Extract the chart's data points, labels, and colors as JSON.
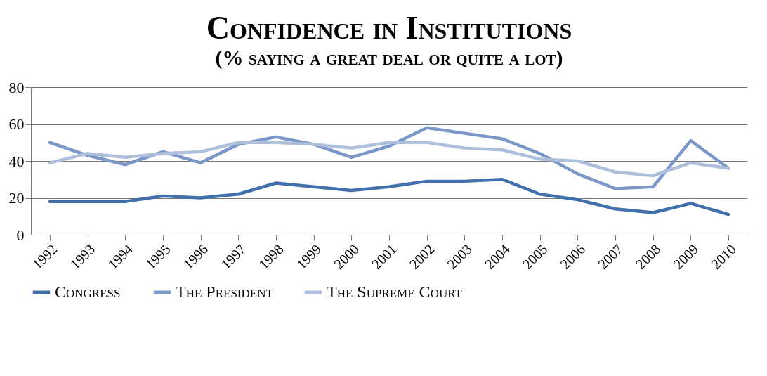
{
  "chart_data": {
    "type": "line",
    "title": "Confidence in Institutions",
    "subtitle": "(% saying a great deal or quite a lot)",
    "categories": [
      "1992",
      "1993",
      "1994",
      "1995",
      "1996",
      "1997",
      "1998",
      "1999",
      "2000",
      "2001",
      "2002",
      "2003",
      "2004",
      "2005",
      "2006",
      "2007",
      "2008",
      "2009",
      "2010"
    ],
    "series": [
      {
        "name": "Congress",
        "color": "#4170ad",
        "values": [
          18,
          18,
          18,
          21,
          20,
          22,
          28,
          26,
          24,
          26,
          29,
          29,
          30,
          22,
          19,
          14,
          12,
          17,
          11
        ]
      },
      {
        "name": "The President",
        "color": "#7a97c8",
        "values": [
          50,
          43,
          38,
          45,
          39,
          49,
          53,
          49,
          42,
          48,
          58,
          55,
          52,
          44,
          33,
          25,
          26,
          51,
          36
        ]
      },
      {
        "name": "The Supreme Court",
        "color": "#aebfdc",
        "values": [
          39,
          44,
          42,
          44,
          45,
          50,
          50,
          49,
          47,
          50,
          50,
          47,
          46,
          41,
          40,
          34,
          32,
          39,
          36
        ]
      }
    ],
    "ylim": [
      0,
      80
    ],
    "yticks": [
      0,
      20,
      40,
      60,
      80
    ],
    "grid": "y",
    "legend": "bottom"
  }
}
